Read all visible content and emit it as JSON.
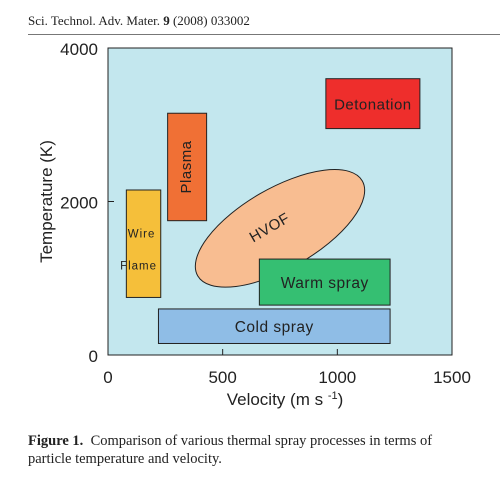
{
  "header": {
    "journal": "Sci. Technol. Adv. Mater.",
    "volume": "9",
    "rest": "(2008) 033002"
  },
  "caption": {
    "label": "Figure 1.",
    "text": "Comparison of various thermal spray processes in terms of particle temperature and velocity."
  },
  "chart_data": {
    "type": "diagram-region",
    "xlabel": "Velocity (m s",
    "xlabel_sup": "-1",
    "xlabel_end": ")",
    "ylabel": "Temperature (K)",
    "xlim": [
      0,
      1500
    ],
    "ylim": [
      0,
      4000
    ],
    "x_ticks": [
      0,
      500,
      1000,
      1500
    ],
    "y_ticks": [
      0,
      2000,
      4000
    ],
    "colors": {
      "plot_bg": "#c3e7ee",
      "wire_flame": "#f5bf3a",
      "plasma": "#f07035",
      "hvof": "#f8bd91",
      "detonation": "#ee2e2c",
      "warm_spray": "#35bf72",
      "cold_spray": "#8fbde6"
    },
    "regions": [
      {
        "id": "wire-flame",
        "shape": "rect",
        "x0": 80,
        "x1": 230,
        "y0": 750,
        "y1": 2150,
        "label_lines": [
          "Wire",
          "Flame"
        ],
        "color_key": "wire_flame"
      },
      {
        "id": "plasma",
        "shape": "rect",
        "x0": 260,
        "x1": 430,
        "y0": 1750,
        "y1": 3150,
        "label": "Plasma",
        "rotate": -90,
        "color_key": "plasma"
      },
      {
        "id": "hvof",
        "shape": "ellipse",
        "cx": 750,
        "cy": 1650,
        "rx": 380,
        "ry": 420,
        "rotate": -30,
        "label": "HVOF",
        "color_key": "hvof"
      },
      {
        "id": "detonation",
        "shape": "rect",
        "x0": 950,
        "x1": 1360,
        "y0": 2950,
        "y1": 3600,
        "label": "Detonation",
        "color_key": "detonation"
      },
      {
        "id": "warm-spray",
        "shape": "rect",
        "x0": 660,
        "x1": 1230,
        "y0": 650,
        "y1": 1250,
        "label": "Warm spray",
        "color_key": "warm_spray"
      },
      {
        "id": "cold-spray",
        "shape": "rect",
        "x0": 220,
        "x1": 1230,
        "y0": 150,
        "y1": 600,
        "label": "Cold spray",
        "color_key": "cold_spray"
      }
    ]
  }
}
